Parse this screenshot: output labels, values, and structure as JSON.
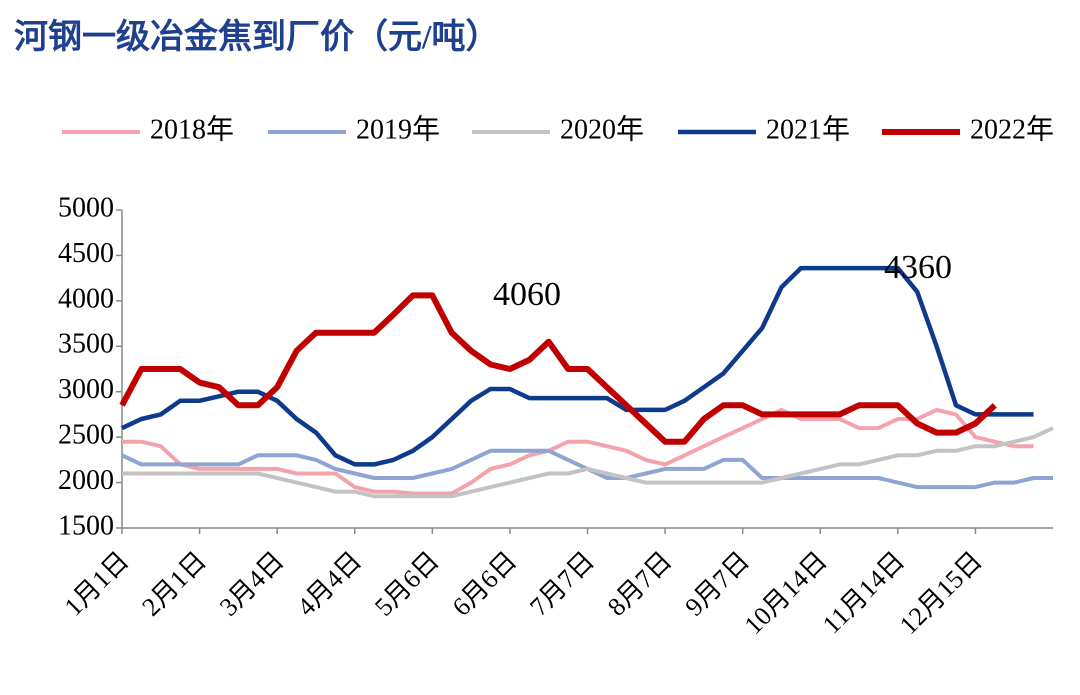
{
  "chart_data": {
    "type": "line",
    "title": "河钢一级冶金焦到厂价（元/吨）",
    "categories": [
      "1月1日",
      null,
      null,
      null,
      "2月1日",
      null,
      null,
      null,
      "3月4日",
      null,
      null,
      null,
      "4月4日",
      null,
      null,
      null,
      "5月6日",
      null,
      null,
      null,
      "6月6日",
      null,
      null,
      null,
      "7月7日",
      null,
      null,
      null,
      "8月7日",
      null,
      null,
      null,
      "9月7日",
      null,
      null,
      null,
      "10月14日",
      null,
      null,
      null,
      "11月14日",
      null,
      null,
      null,
      "12月15日",
      null,
      null,
      null,
      null
    ],
    "series": [
      {
        "name": "2018年",
        "color": "#f4a3ab",
        "values": [
          2450,
          2450,
          2400,
          2200,
          2150,
          2150,
          2150,
          2150,
          2150,
          2100,
          2100,
          2100,
          1950,
          1900,
          1900,
          1880,
          1880,
          1880,
          2000,
          2150,
          2200,
          2300,
          2350,
          2450,
          2450,
          2400,
          2350,
          2250,
          2200,
          2300,
          2400,
          2500,
          2600,
          2700,
          2800,
          2700,
          2700,
          2700,
          2600,
          2600,
          2700,
          2700,
          2800,
          2750,
          2500,
          2450,
          2400,
          2400,
          null
        ]
      },
      {
        "name": "2019年",
        "color": "#8ea4d2",
        "values": [
          2300,
          2200,
          2200,
          2200,
          2200,
          2200,
          2200,
          2300,
          2300,
          2300,
          2250,
          2150,
          2100,
          2050,
          2050,
          2050,
          2100,
          2150,
          2250,
          2350,
          2350,
          2350,
          2350,
          2250,
          2150,
          2050,
          2050,
          2100,
          2150,
          2150,
          2150,
          2250,
          2250,
          2050,
          2050,
          2050,
          2050,
          2050,
          2050,
          2050,
          2000,
          1950,
          1950,
          1950,
          1950,
          2000,
          2000,
          2050,
          2050
        ]
      },
      {
        "name": "2020年",
        "color": "#c3c3c3",
        "values": [
          2100,
          2100,
          2100,
          2100,
          2100,
          2100,
          2100,
          2100,
          2050,
          2000,
          1950,
          1900,
          1900,
          1850,
          1850,
          1850,
          1850,
          1850,
          1900,
          1950,
          2000,
          2050,
          2100,
          2100,
          2150,
          2100,
          2050,
          2000,
          2000,
          2000,
          2000,
          2000,
          2000,
          2000,
          2050,
          2100,
          2150,
          2200,
          2200,
          2250,
          2300,
          2300,
          2350,
          2350,
          2400,
          2400,
          2450,
          2500,
          2600
        ]
      },
      {
        "name": "2021年",
        "color": "#0d3a8a",
        "width": 4.5,
        "values": [
          2600,
          2700,
          2750,
          2900,
          2900,
          2950,
          3000,
          3000,
          2900,
          2700,
          2550,
          2300,
          2200,
          2200,
          2250,
          2350,
          2500,
          2700,
          2900,
          3030,
          3030,
          2930,
          2930,
          2930,
          2930,
          2930,
          2800,
          2800,
          2800,
          2900,
          3050,
          3200,
          3450,
          3700,
          4150,
          4360,
          4360,
          4360,
          4360,
          4360,
          4360,
          4100,
          3500,
          2850,
          2750,
          2750,
          2750,
          2750,
          null
        ]
      },
      {
        "name": "2022年",
        "color": "#c00000",
        "width": 6,
        "values": [
          2850,
          3250,
          3250,
          3250,
          3100,
          3050,
          2850,
          2850,
          3050,
          3450,
          3650,
          3650,
          3650,
          3650,
          3850,
          4060,
          4060,
          3650,
          3450,
          3300,
          3250,
          3350,
          3550,
          3250,
          3250,
          3050,
          2850,
          2650,
          2450,
          2450,
          2700,
          2850,
          2850,
          2750,
          2750,
          2750,
          2750,
          2750,
          2850,
          2850,
          2850,
          2650,
          2550,
          2550,
          2650,
          2850,
          null,
          null,
          null
        ]
      }
    ],
    "annotations": [
      "4060",
      "4360"
    ],
    "ylim": [
      1500,
      5000
    ],
    "yticks": [
      1500,
      2000,
      2500,
      3000,
      3500,
      4000,
      4500,
      5000
    ],
    "grid": false,
    "legend": "top"
  }
}
